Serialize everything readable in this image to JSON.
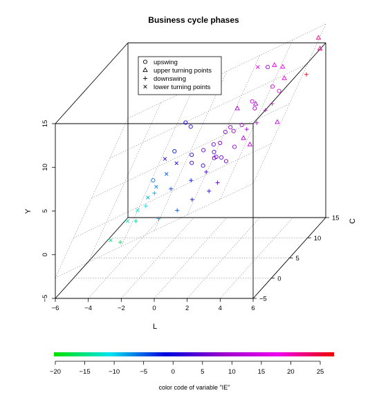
{
  "chart_data": {
    "type": "scatter",
    "title": "Business cycle phases",
    "xlabel": "L",
    "ylabel": "C",
    "zlabel": "Y",
    "x_ticks": [
      "−6",
      "−4",
      "−2",
      "0",
      "2",
      "4",
      "6"
    ],
    "y_ticks": [
      "−5",
      "0",
      "5",
      "10",
      "15"
    ],
    "z_ticks": [
      "−5",
      "0",
      "5",
      "10",
      "15"
    ],
    "xlim": [
      -6,
      6
    ],
    "ylim": [
      -5,
      15
    ],
    "zlim": [
      -5,
      15
    ],
    "legend": {
      "position": "top-left",
      "entries": [
        {
          "label": "upswing",
          "symbol": "circle"
        },
        {
          "label": "upper turning points",
          "symbol": "triangle"
        },
        {
          "label": "downswing",
          "symbol": "plus"
        },
        {
          "label": "lower turning points",
          "symbol": "cross"
        }
      ]
    },
    "colorbar": {
      "title": "color code of variable \"IE\"",
      "ticks": [
        "−20",
        "−15",
        "−10",
        "−5",
        "0",
        "5",
        "10",
        "15",
        "20",
        "25"
      ],
      "range": [
        -20,
        27
      ],
      "colors": [
        "#00e000",
        "#00e5ee",
        "#0000dd",
        "#9900cc",
        "#ee00ee",
        "#ee0000"
      ]
    },
    "points": [
      {
        "s": "up",
        "x": -0.3,
        "y": 5.0,
        "z": 10.5,
        "ie": 0
      },
      {
        "s": "up",
        "x": -0.1,
        "y": 5.5,
        "z": 9.8,
        "ie": 2
      },
      {
        "s": "up",
        "x": 1.0,
        "y": 4.0,
        "z": 7.8,
        "ie": 5
      },
      {
        "s": "up",
        "x": 1.4,
        "y": 5.0,
        "z": 8.0,
        "ie": 6
      },
      {
        "s": "up",
        "x": 1.6,
        "y": 4.2,
        "z": 7.5,
        "ie": 4
      },
      {
        "s": "up",
        "x": 1.7,
        "y": 3.8,
        "z": 7.0,
        "ie": 6
      },
      {
        "s": "up",
        "x": 1.9,
        "y": 4.5,
        "z": 8.4,
        "ie": 7
      },
      {
        "s": "up",
        "x": 2.0,
        "y": 5.5,
        "z": 9.2,
        "ie": 7
      },
      {
        "s": "up",
        "x": 2.2,
        "y": 6.0,
        "z": 9.5,
        "ie": 8
      },
      {
        "s": "up",
        "x": 2.2,
        "y": 3.5,
        "z": 7.2,
        "ie": 5
      },
      {
        "s": "up",
        "x": 2.5,
        "y": 5.5,
        "z": 9.3,
        "ie": 9
      },
      {
        "s": "up",
        "x": 2.6,
        "y": 3.0,
        "z": 7.0,
        "ie": 6
      },
      {
        "s": "up",
        "x": 2.8,
        "y": 4.4,
        "z": 8.0,
        "ie": 8
      },
      {
        "s": "up",
        "x": 3.0,
        "y": 5.5,
        "z": 10.0,
        "ie": 11
      },
      {
        "s": "up",
        "x": 3.3,
        "y": 7.0,
        "z": 12.0,
        "ie": 13
      },
      {
        "s": "up",
        "x": 3.5,
        "y": 6.8,
        "z": 11.3,
        "ie": 10
      },
      {
        "s": "up",
        "x": 1.2,
        "y": 3.0,
        "z": 6.5,
        "ie": 3
      },
      {
        "s": "up",
        "x": 0.4,
        "y": 3.5,
        "z": 7.5,
        "ie": 1
      },
      {
        "s": "up",
        "x": 3.8,
        "y": 9.0,
        "z": 15.0,
        "ie": 10
      },
      {
        "s": "up",
        "x": 4.2,
        "y": 8.5,
        "z": 13.0,
        "ie": 16
      },
      {
        "s": "up",
        "x": 4.6,
        "y": 8.5,
        "z": 12.5,
        "ie": 16
      },
      {
        "s": "up",
        "x": -1.5,
        "y": 1.5,
        "z": 5.5,
        "ie": -6
      },
      {
        "s": "up",
        "x": -0.6,
        "y": 3.3,
        "z": 8.0,
        "ie": -2
      },
      {
        "s": "up",
        "x": 0.6,
        "y": 2.6,
        "z": 7.0,
        "ie": 3
      },
      {
        "s": "up",
        "x": 2.0,
        "y": 3.0,
        "z": 7.5,
        "ie": 6
      },
      {
        "s": "upper",
        "x": 2.4,
        "y": 7.0,
        "z": 11.2,
        "ie": 9
      },
      {
        "s": "upper",
        "x": 3.1,
        "y": 5.5,
        "z": 8.5,
        "ie": 12
      },
      {
        "s": "upper",
        "x": 3.4,
        "y": 7.5,
        "z": 11.5,
        "ie": 10
      },
      {
        "s": "upper",
        "x": 3.6,
        "y": 5.0,
        "z": 8.0,
        "ie": 13
      },
      {
        "s": "upper",
        "x": 4.1,
        "y": 9.5,
        "z": 15.0,
        "ie": 18
      },
      {
        "s": "upper",
        "x": 4.6,
        "y": 9.5,
        "z": 14.8,
        "ie": 17
      },
      {
        "s": "upper",
        "x": 5.0,
        "y": 6.2,
        "z": 10.0,
        "ie": 12
      },
      {
        "s": "upper",
        "x": 6.0,
        "y": 13.0,
        "z": 16.5,
        "ie": 22
      },
      {
        "s": "upper",
        "x": 6.2,
        "y": 12.5,
        "z": 15.5,
        "ie": 21
      },
      {
        "s": "upper",
        "x": 4.7,
        "y": 9.5,
        "z": 13.5,
        "ie": 19
      },
      {
        "s": "down",
        "x": -2.0,
        "y": -1.0,
        "z": 2.0,
        "ie": -14
      },
      {
        "s": "down",
        "x": -1.5,
        "y": -0.5,
        "z": 3.5,
        "ie": -10
      },
      {
        "s": "down",
        "x": -1.2,
        "y": 0.5,
        "z": 4.5,
        "ie": -8
      },
      {
        "s": "down",
        "x": -0.5,
        "y": -1.5,
        "z": 2.5,
        "ie": -8
      },
      {
        "s": "down",
        "x": -0.2,
        "y": 0.5,
        "z": 5.0,
        "ie": -4
      },
      {
        "s": "down",
        "x": 0.4,
        "y": -0.5,
        "z": 3.0,
        "ie": -5
      },
      {
        "s": "down",
        "x": 0.8,
        "y": 1.5,
        "z": 5.5,
        "ie": -2
      },
      {
        "s": "down",
        "x": 1.2,
        "y": 0.0,
        "z": 4.0,
        "ie": -2
      },
      {
        "s": "down",
        "x": 1.5,
        "y": 2.5,
        "z": 6.0,
        "ie": 3
      },
      {
        "s": "down",
        "x": 2.0,
        "y": 1.0,
        "z": 4.5,
        "ie": 2
      },
      {
        "s": "down",
        "x": 2.3,
        "y": 2.0,
        "z": 5.0,
        "ie": 4
      },
      {
        "s": "down",
        "x": 3.3,
        "y": 5.5,
        "z": 9.5,
        "ie": 9
      },
      {
        "s": "down",
        "x": 3.8,
        "y": 6.0,
        "z": 10.0,
        "ie": 12
      },
      {
        "s": "down",
        "x": 4.1,
        "y": 7.0,
        "z": 11.0,
        "ie": 15
      },
      {
        "s": "down",
        "x": 4.4,
        "y": 7.5,
        "z": 11.5,
        "ie": 16
      },
      {
        "s": "down",
        "x": 5.6,
        "y": 11.5,
        "z": 13.0,
        "ie": 26
      },
      {
        "s": "down",
        "x": -2.5,
        "y": -3.0,
        "z": 0.5,
        "ie": -17
      },
      {
        "s": "lower",
        "x": -3.2,
        "y": -2.5,
        "z": 0.5,
        "ie": -14
      },
      {
        "s": "lower",
        "x": -2.5,
        "y": -1.0,
        "z": 2.0,
        "ie": -13
      },
      {
        "s": "lower",
        "x": -2.0,
        "y": -0.5,
        "z": 3.0,
        "ie": -11
      },
      {
        "s": "lower",
        "x": -1.6,
        "y": 0.5,
        "z": 4.0,
        "ie": -9
      },
      {
        "s": "lower",
        "x": -1.2,
        "y": 1.0,
        "z": 5.0,
        "ie": -7
      },
      {
        "s": "lower",
        "x": -0.8,
        "y": 2.0,
        "z": 6.0,
        "ie": -5
      },
      {
        "s": "lower",
        "x": -0.3,
        "y": 2.5,
        "z": 7.0,
        "ie": 0
      },
      {
        "s": "lower",
        "x": -1.0,
        "y": 2.5,
        "z": 7.5,
        "ie": 2
      },
      {
        "s": "lower",
        "x": 3.2,
        "y": 9.0,
        "z": 15.0,
        "ie": 18
      }
    ]
  }
}
